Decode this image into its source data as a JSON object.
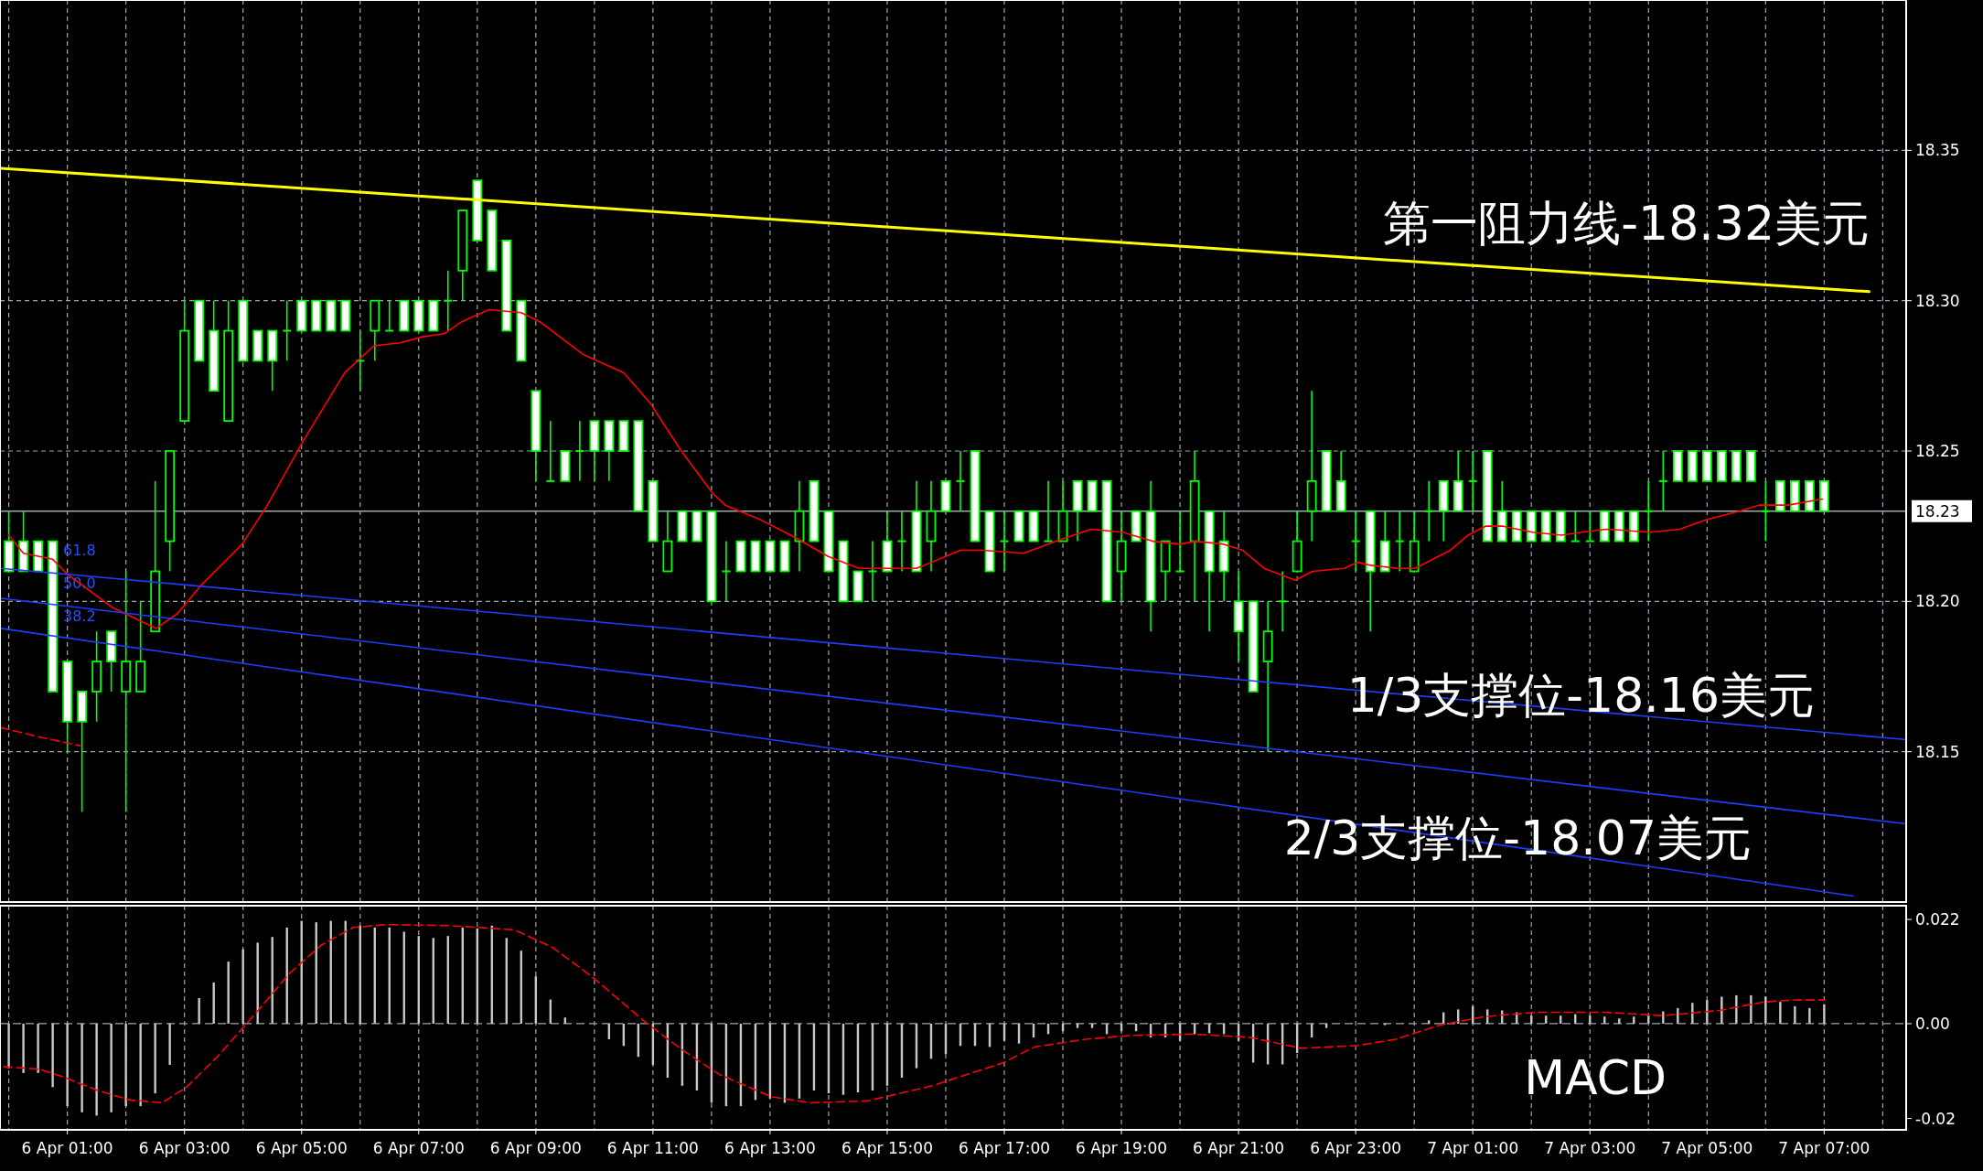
{
  "chart_data": [
    {
      "type": "candlestick",
      "xlim": [
        "--04-05T23:51",
        "--04-07T08:24"
      ],
      "ylim": [
        18.1,
        18.4
      ],
      "yticks": [
        {
          "value": 18.15,
          "label": "18.15"
        },
        {
          "value": 18.2,
          "label": "18.20"
        },
        {
          "value": 18.25,
          "label": "18.25"
        },
        {
          "value": 18.3,
          "label": "18.30"
        },
        {
          "value": 18.35,
          "label": "18.35"
        }
      ],
      "xticks": [
        {
          "value": "--04-06T00:00",
          "label": null
        },
        {
          "value": "--04-06T01:00",
          "label": null
        },
        {
          "value": "--04-06T02:00",
          "label": null
        },
        {
          "value": "--04-06T03:00",
          "label": null
        },
        {
          "value": "--04-06T04:00",
          "label": null
        },
        {
          "value": "--04-06T05:00",
          "label": null
        },
        {
          "value": "--04-06T06:00",
          "label": null
        },
        {
          "value": "--04-06T07:00",
          "label": null
        },
        {
          "value": "--04-06T08:00",
          "label": null
        },
        {
          "value": "--04-06T09:00",
          "label": null
        },
        {
          "value": "--04-06T10:00",
          "label": null
        },
        {
          "value": "--04-06T11:00",
          "label": null
        },
        {
          "value": "--04-06T12:00",
          "label": null
        },
        {
          "value": "--04-06T13:00",
          "label": null
        },
        {
          "value": "--04-06T14:00",
          "label": null
        },
        {
          "value": "--04-06T15:00",
          "label": null
        },
        {
          "value": "--04-06T16:00",
          "label": null
        },
        {
          "value": "--04-06T17:00",
          "label": null
        },
        {
          "value": "--04-06T18:00",
          "label": null
        },
        {
          "value": "--04-06T19:00",
          "label": null
        },
        {
          "value": "--04-06T20:00",
          "label": null
        },
        {
          "value": "--04-06T21:00",
          "label": null
        },
        {
          "value": "--04-06T22:00",
          "label": null
        },
        {
          "value": "--04-06T23:00",
          "label": null
        },
        {
          "value": "--04-07T00:00",
          "label": null
        },
        {
          "value": "--04-07T01:00",
          "label": null
        },
        {
          "value": "--04-07T02:00",
          "label": null
        },
        {
          "value": "--04-07T03:00",
          "label": null
        },
        {
          "value": "--04-07T04:00",
          "label": null
        },
        {
          "value": "--04-07T05:00",
          "label": null
        },
        {
          "value": "--04-07T06:00",
          "label": null
        },
        {
          "value": "--04-07T07:00",
          "label": null
        },
        {
          "value": "--04-07T08:00",
          "label": null
        }
      ],
      "tick_labels": "y",
      "grid": true,
      "x": [
        "--04-06T00:00",
        "--04-06T00:15",
        "--04-06T00:30",
        "--04-06T00:45",
        "--04-06T01:00",
        "--04-06T01:15",
        "--04-06T01:30",
        "--04-06T01:45",
        "--04-06T02:00",
        "--04-06T02:15",
        "--04-06T02:30",
        "--04-06T02:45",
        "--04-06T03:00",
        "--04-06T03:15",
        "--04-06T03:30",
        "--04-06T03:45",
        "--04-06T04:00",
        "--04-06T04:15",
        "--04-06T04:30",
        "--04-06T04:45",
        "--04-06T05:00",
        "--04-06T05:15",
        "--04-06T05:30",
        "--04-06T05:45",
        "--04-06T06:00",
        "--04-06T06:15",
        "--04-06T06:30",
        "--04-06T06:45",
        "--04-06T07:00",
        "--04-06T07:15",
        "--04-06T07:30",
        "--04-06T07:45",
        "--04-06T08:00",
        "--04-06T08:15",
        "--04-06T08:30",
        "--04-06T08:45",
        "--04-06T09:00",
        "--04-06T09:15",
        "--04-06T09:30",
        "--04-06T09:45",
        "--04-06T10:00",
        "--04-06T10:15",
        "--04-06T10:30",
        "--04-06T10:45",
        "--04-06T11:00",
        "--04-06T11:15",
        "--04-06T11:30",
        "--04-06T11:45",
        "--04-06T12:00",
        "--04-06T12:15",
        "--04-06T12:30",
        "--04-06T12:45",
        "--04-06T13:00",
        "--04-06T13:15",
        "--04-06T13:30",
        "--04-06T13:45",
        "--04-06T14:00",
        "--04-06T14:15",
        "--04-06T14:30",
        "--04-06T14:45",
        "--04-06T15:00",
        "--04-06T15:15",
        "--04-06T15:30",
        "--04-06T15:45",
        "--04-06T16:00",
        "--04-06T16:15",
        "--04-06T16:30",
        "--04-06T16:45",
        "--04-06T17:00",
        "--04-06T17:15",
        "--04-06T17:30",
        "--04-06T17:45",
        "--04-06T18:00",
        "--04-06T18:15",
        "--04-06T18:30",
        "--04-06T18:45",
        "--04-06T19:00",
        "--04-06T19:15",
        "--04-06T19:30",
        "--04-06T19:45",
        "--04-06T20:00",
        "--04-06T20:15",
        "--04-06T20:30",
        "--04-06T20:45",
        "--04-06T21:00",
        "--04-06T21:15",
        "--04-06T21:30",
        "--04-06T21:45",
        "--04-06T22:00",
        "--04-06T22:15",
        "--04-06T22:30",
        "--04-06T22:45",
        "--04-06T23:00",
        "--04-06T23:15",
        "--04-06T23:30",
        "--04-06T23:45",
        "--04-07T00:00",
        "--04-07T00:15",
        "--04-07T00:30",
        "--04-07T00:45",
        "--04-07T01:00",
        "--04-07T01:15",
        "--04-07T01:30",
        "--04-07T01:45",
        "--04-07T02:00",
        "--04-07T02:15",
        "--04-07T02:30",
        "--04-07T02:45",
        "--04-07T03:00",
        "--04-07T03:15",
        "--04-07T03:30",
        "--04-07T03:45",
        "--04-07T04:00",
        "--04-07T04:15",
        "--04-07T04:30",
        "--04-07T04:45",
        "--04-07T05:00",
        "--04-07T05:15",
        "--04-07T05:30",
        "--04-07T05:45",
        "--04-07T06:00",
        "--04-07T06:15",
        "--04-07T06:30",
        "--04-07T06:45",
        "--04-07T07:00"
      ],
      "series": [
        {
          "color": "#00ff00",
          "ohlc": [
            [
              18.22,
              18.23,
              18.21,
              18.21
            ],
            [
              18.22,
              18.23,
              18.21,
              18.21
            ],
            [
              18.22,
              18.22,
              18.21,
              18.21
            ],
            [
              18.22,
              18.22,
              18.17,
              18.17
            ],
            [
              18.18,
              18.18,
              18.15,
              18.16
            ],
            [
              18.17,
              18.17,
              18.13,
              18.16
            ],
            [
              18.17,
              18.19,
              18.16,
              18.18
            ],
            [
              18.19,
              18.19,
              18.17,
              18.18
            ],
            [
              18.17,
              18.21,
              18.13,
              18.18
            ],
            [
              18.17,
              18.2,
              18.17,
              18.18
            ],
            [
              18.19,
              18.24,
              18.19,
              18.21
            ],
            [
              18.22,
              18.25,
              18.21,
              18.25
            ],
            [
              18.26,
              18.3,
              18.26,
              18.29
            ],
            [
              18.3,
              18.3,
              18.28,
              18.28
            ],
            [
              18.29,
              18.3,
              18.27,
              18.27
            ],
            [
              18.26,
              18.3,
              18.26,
              18.29
            ],
            [
              18.3,
              18.3,
              18.28,
              18.28
            ],
            [
              18.29,
              18.29,
              18.28,
              18.28
            ],
            [
              18.29,
              18.29,
              18.27,
              18.28
            ],
            [
              18.29,
              18.3,
              18.28,
              18.29
            ],
            [
              18.3,
              18.3,
              18.29,
              18.29
            ],
            [
              18.3,
              18.3,
              18.29,
              18.29
            ],
            [
              18.3,
              18.3,
              18.29,
              18.29
            ],
            [
              18.3,
              18.3,
              18.29,
              18.29
            ],
            [
              18.28,
              18.29,
              18.27,
              18.28
            ],
            [
              18.29,
              18.3,
              18.28,
              18.3
            ],
            [
              18.29,
              18.3,
              18.29,
              18.29
            ],
            [
              18.3,
              18.3,
              18.29,
              18.29
            ],
            [
              18.3,
              18.3,
              18.29,
              18.29
            ],
            [
              18.3,
              18.3,
              18.29,
              18.29
            ],
            [
              18.3,
              18.31,
              18.29,
              18.3
            ],
            [
              18.31,
              18.33,
              18.3,
              18.33
            ],
            [
              18.34,
              18.34,
              18.32,
              18.32
            ],
            [
              18.33,
              18.33,
              18.31,
              18.31
            ],
            [
              18.32,
              18.32,
              18.29,
              18.29
            ],
            [
              18.3,
              18.3,
              18.28,
              18.28
            ],
            [
              18.27,
              18.27,
              18.24,
              18.25
            ],
            [
              18.24,
              18.26,
              18.24,
              18.24
            ],
            [
              18.25,
              18.25,
              18.24,
              18.24
            ],
            [
              18.25,
              18.26,
              18.24,
              18.25
            ],
            [
              18.26,
              18.26,
              18.24,
              18.25
            ],
            [
              18.26,
              18.26,
              18.24,
              18.25
            ],
            [
              18.26,
              18.26,
              18.25,
              18.25
            ],
            [
              18.26,
              18.26,
              18.23,
              18.23
            ],
            [
              18.24,
              18.24,
              18.22,
              18.22
            ],
            [
              18.21,
              18.23,
              18.21,
              18.22
            ],
            [
              18.23,
              18.23,
              18.22,
              18.22
            ],
            [
              18.23,
              18.23,
              18.22,
              18.22
            ],
            [
              18.23,
              18.23,
              18.2,
              18.2
            ],
            [
              18.21,
              18.22,
              18.2,
              18.21
            ],
            [
              18.22,
              18.22,
              18.21,
              18.21
            ],
            [
              18.22,
              18.22,
              18.21,
              18.21
            ],
            [
              18.22,
              18.22,
              18.21,
              18.21
            ],
            [
              18.22,
              18.22,
              18.21,
              18.21
            ],
            [
              18.22,
              18.24,
              18.21,
              18.23
            ],
            [
              18.24,
              18.24,
              18.22,
              18.22
            ],
            [
              18.23,
              18.23,
              18.21,
              18.21
            ],
            [
              18.22,
              18.22,
              18.2,
              18.2
            ],
            [
              18.21,
              18.21,
              18.2,
              18.2
            ],
            [
              18.21,
              18.22,
              18.2,
              18.21
            ],
            [
              18.22,
              18.23,
              18.21,
              18.21
            ],
            [
              18.22,
              18.23,
              18.21,
              18.22
            ],
            [
              18.23,
              18.24,
              18.21,
              18.21
            ],
            [
              18.22,
              18.24,
              18.21,
              18.23
            ],
            [
              18.24,
              18.24,
              18.23,
              18.23
            ],
            [
              18.24,
              18.25,
              18.23,
              18.24
            ],
            [
              18.25,
              18.25,
              18.22,
              18.22
            ],
            [
              18.23,
              18.23,
              18.21,
              18.21
            ],
            [
              18.22,
              18.23,
              18.21,
              18.22
            ],
            [
              18.23,
              18.23,
              18.22,
              18.22
            ],
            [
              18.23,
              18.23,
              18.22,
              18.22
            ],
            [
              18.22,
              18.24,
              18.22,
              18.22
            ],
            [
              18.22,
              18.24,
              18.22,
              18.23
            ],
            [
              18.24,
              18.24,
              18.22,
              18.23
            ],
            [
              18.24,
              18.24,
              18.23,
              18.23
            ],
            [
              18.24,
              18.24,
              18.2,
              18.2
            ],
            [
              18.21,
              18.23,
              18.2,
              18.22
            ],
            [
              18.23,
              18.23,
              18.22,
              18.22
            ],
            [
              18.23,
              18.24,
              18.19,
              18.2
            ],
            [
              18.21,
              18.22,
              18.2,
              18.22
            ],
            [
              18.21,
              18.23,
              18.21,
              18.21
            ],
            [
              18.22,
              18.25,
              18.2,
              18.24
            ],
            [
              18.23,
              18.23,
              18.19,
              18.21
            ],
            [
              18.22,
              18.23,
              18.2,
              18.21
            ],
            [
              18.2,
              18.21,
              18.18,
              18.19
            ],
            [
              18.2,
              18.2,
              18.17,
              18.17
            ],
            [
              18.18,
              18.2,
              18.15,
              18.19
            ],
            [
              18.2,
              18.21,
              18.19,
              18.2
            ],
            [
              18.21,
              18.23,
              18.21,
              18.22
            ],
            [
              18.23,
              18.27,
              18.22,
              18.24
            ],
            [
              18.25,
              18.25,
              18.23,
              18.23
            ],
            [
              18.24,
              18.25,
              18.23,
              18.23
            ],
            [
              18.22,
              18.23,
              18.21,
              18.22
            ],
            [
              18.23,
              18.23,
              18.19,
              18.21
            ],
            [
              18.22,
              18.23,
              18.21,
              18.21
            ],
            [
              18.22,
              18.23,
              18.21,
              18.22
            ],
            [
              18.21,
              18.23,
              18.21,
              18.22
            ],
            [
              18.23,
              18.24,
              18.22,
              18.23
            ],
            [
              18.24,
              18.24,
              18.22,
              18.23
            ],
            [
              18.24,
              18.25,
              18.23,
              18.23
            ],
            [
              18.24,
              18.25,
              18.23,
              18.24
            ],
            [
              18.25,
              18.25,
              18.22,
              18.22
            ],
            [
              18.23,
              18.24,
              18.22,
              18.22
            ],
            [
              18.23,
              18.23,
              18.22,
              18.22
            ],
            [
              18.23,
              18.23,
              18.22,
              18.22
            ],
            [
              18.23,
              18.23,
              18.22,
              18.22
            ],
            [
              18.23,
              18.23,
              18.22,
              18.22
            ],
            [
              18.22,
              18.23,
              18.22,
              18.22
            ],
            [
              18.22,
              18.23,
              18.22,
              18.22
            ],
            [
              18.23,
              18.23,
              18.22,
              18.22
            ],
            [
              18.23,
              18.23,
              18.22,
              18.22
            ],
            [
              18.23,
              18.23,
              18.22,
              18.22
            ],
            [
              18.23,
              18.24,
              18.22,
              18.23
            ],
            [
              18.24,
              18.25,
              18.23,
              18.24
            ],
            [
              18.25,
              18.25,
              18.24,
              18.24
            ],
            [
              18.25,
              18.25,
              18.24,
              18.24
            ],
            [
              18.25,
              18.25,
              18.24,
              18.24
            ],
            [
              18.25,
              18.25,
              18.24,
              18.24
            ],
            [
              18.25,
              18.25,
              18.24,
              18.24
            ],
            [
              18.25,
              18.25,
              18.24,
              18.24
            ],
            [
              18.23,
              18.24,
              18.22,
              18.23
            ],
            [
              18.24,
              18.24,
              18.23,
              18.23
            ],
            [
              18.24,
              18.24,
              18.23,
              18.23
            ],
            [
              18.24,
              18.24,
              18.23,
              18.23
            ],
            [
              18.24,
              18.24,
              18.23,
              18.23
            ]
          ]
        },
        {
          "type": "line",
          "color": "#ff0000",
          "x": [
            "--04-06T00:00",
            "--04-06T00:15",
            "--04-06T00:45",
            "--04-06T01:00",
            "--04-06T01:46",
            "--04-06T02:31",
            "--04-06T02:53",
            "--04-06T03:16",
            "--04-06T03:59",
            "--04-06T04:25",
            "--04-06T05:01",
            "--04-06T05:44",
            "--04-06T06:14",
            "--04-06T06:41",
            "--04-06T07:04",
            "--04-06T07:26",
            "--04-06T07:44",
            "--04-06T08:12",
            "--04-06T08:45",
            "--04-06T09:04",
            "--04-06T09:49",
            "--04-06T10:30",
            "--04-06T10:57",
            "--04-06T11:29",
            "--04-06T12:01",
            "--04-06T12:14",
            "--04-06T12:51",
            "--04-06T13:27",
            "--04-06T13:59",
            "--04-06T14:31",
            "--04-06T15:07",
            "--04-06T15:30",
            "--04-06T15:53",
            "--04-06T16:15",
            "--04-06T16:38",
            "--04-06T17:20",
            "--04-06T17:53",
            "--04-06T18:29",
            "--04-06T19:01",
            "--04-06T19:32",
            "--04-06T20:00",
            "--04-06T20:16",
            "--04-06T20:45",
            "--04-06T21:04",
            "--04-06T21:26",
            "--04-06T21:58",
            "--04-06T22:16",
            "--04-06T22:48",
            "--04-06T23:02",
            "--04-06T23:15",
            "--04-06T23:43",
            "--04-07T00:01",
            "--04-07T00:19",
            "--04-07T00:37",
            "--04-07T00:55",
            "--04-07T01:13",
            "--04-07T01:31",
            "--04-07T02:01",
            "--04-07T02:31",
            "--04-07T02:52",
            "--04-07T03:17",
            "--04-07T04:02",
            "--04-07T04:32",
            "--04-07T04:58",
            "--04-07T05:33",
            "--04-07T05:53",
            "--04-07T06:23",
            "--04-07T06:58"
          ],
          "values": [
            18.222,
            18.216,
            18.214,
            18.209,
            18.198,
            18.191,
            18.196,
            18.205,
            18.219,
            18.232,
            18.253,
            18.276,
            18.285,
            18.286,
            18.288,
            18.289,
            18.293,
            18.297,
            18.296,
            18.293,
            18.282,
            18.276,
            18.266,
            18.25,
            18.236,
            18.232,
            18.227,
            18.221,
            18.215,
            18.211,
            18.211,
            18.211,
            18.214,
            18.217,
            18.217,
            18.216,
            18.22,
            18.224,
            18.223,
            18.22,
            18.219,
            18.22,
            18.219,
            18.217,
            18.211,
            18.207,
            18.21,
            18.211,
            18.213,
            18.212,
            18.211,
            18.211,
            18.214,
            18.217,
            18.222,
            18.225,
            18.225,
            18.223,
            18.222,
            18.223,
            18.224,
            18.223,
            18.224,
            18.227,
            18.23,
            18.232,
            18.232,
            18.234
          ]
        },
        {
          "type": "line",
          "color": "#ff0000",
          "line_style": "dashed",
          "x": [
            "--04-05T23:52",
            "--04-06T00:30",
            "--04-06T01:13"
          ],
          "values": [
            18.158,
            18.155,
            18.152
          ]
        },
        {
          "type": "line",
          "color": "#ffff00",
          "x": [
            "--04-05T23:52",
            "--04-07T07:46"
          ],
          "values": [
            18.344,
            18.303
          ]
        },
        {
          "type": "line",
          "color": "#1f3dff",
          "x": [
            "--04-05T23:52",
            "--04-07T08:24"
          ],
          "values": [
            18.211,
            18.154
          ]
        },
        {
          "type": "line",
          "color": "#1f3dff",
          "x": [
            "--04-05T23:52",
            "--04-07T08:24"
          ],
          "values": [
            18.201,
            18.126
          ]
        },
        {
          "type": "line",
          "color": "#1f3dff",
          "x": [
            "--04-05T23:52",
            "--04-07T07:30"
          ],
          "values": [
            18.191,
            18.102
          ]
        }
      ],
      "ref_lines": [
        {
          "axis": "y",
          "value": 18.23,
          "label": "18.23",
          "color": "#a0a8b0"
        }
      ],
      "annotations": [
        "第一阻力线-18.32美元",
        "1/3支撑位-18.16美元",
        "2/3支撑位-18.07美元",
        "61.8",
        "50.0",
        "38.2"
      ]
    },
    {
      "type": "bar",
      "xlim": [
        "--04-05T23:51",
        "--04-07T08:24"
      ],
      "ylim": [
        -0.0224,
        0.0249
      ],
      "yticks": [
        {
          "value": -0.02,
          "label": "-0.02"
        },
        {
          "value": 0,
          "label": "0.00"
        },
        0.022
      ],
      "xticks": [
        {
          "value": "--04-06T00:00",
          "label": null
        },
        {
          "value": "--04-06T01:00",
          "label": "6 Apr 01:00"
        },
        {
          "value": "--04-06T02:00",
          "label": null
        },
        {
          "value": "--04-06T03:00",
          "label": "6 Apr 03:00"
        },
        {
          "value": "--04-06T04:00",
          "label": null
        },
        {
          "value": "--04-06T05:00",
          "label": "6 Apr 05:00"
        },
        {
          "value": "--04-06T06:00",
          "label": null
        },
        {
          "value": "--04-06T07:00",
          "label": "6 Apr 07:00"
        },
        {
          "value": "--04-06T08:00",
          "label": null
        },
        {
          "value": "--04-06T09:00",
          "label": "6 Apr 09:00"
        },
        {
          "value": "--04-06T10:00",
          "label": null
        },
        {
          "value": "--04-06T11:00",
          "label": "6 Apr 11:00"
        },
        {
          "value": "--04-06T12:00",
          "label": null
        },
        {
          "value": "--04-06T13:00",
          "label": "6 Apr 13:00"
        },
        {
          "value": "--04-06T14:00",
          "label": null
        },
        {
          "value": "--04-06T15:00",
          "label": "6 Apr 15:00"
        },
        {
          "value": "--04-06T16:00",
          "label": null
        },
        {
          "value": "--04-06T17:00",
          "label": "6 Apr 17:00"
        },
        {
          "value": "--04-06T18:00",
          "label": null
        },
        {
          "value": "--04-06T19:00",
          "label": "6 Apr 19:00"
        },
        {
          "value": "--04-06T20:00",
          "label": null
        },
        {
          "value": "--04-06T21:00",
          "label": "6 Apr 21:00"
        },
        {
          "value": "--04-06T22:00",
          "label": null
        },
        {
          "value": "--04-06T23:00",
          "label": "6 Apr 23:00"
        },
        {
          "value": "--04-07T00:00",
          "label": null
        },
        {
          "value": "--04-07T01:00",
          "label": "7 Apr 01:00"
        },
        {
          "value": "--04-07T02:00",
          "label": null
        },
        {
          "value": "--04-07T03:00",
          "label": "7 Apr 03:00"
        },
        {
          "value": "--04-07T04:00",
          "label": null
        },
        {
          "value": "--04-07T05:00",
          "label": "7 Apr 05:00"
        },
        {
          "value": "--04-07T06:00",
          "label": null
        },
        {
          "value": "--04-07T07:00",
          "label": "7 Apr 07:00"
        },
        {
          "value": "--04-07T08:00",
          "label": null
        }
      ],
      "grid": "x",
      "x": [
        "--04-06T00:00",
        "--04-06T00:15",
        "--04-06T00:30",
        "--04-06T00:45",
        "--04-06T01:00",
        "--04-06T01:15",
        "--04-06T01:30",
        "--04-06T01:45",
        "--04-06T02:00",
        "--04-06T02:15",
        "--04-06T02:30",
        "--04-06T02:45",
        "--04-06T03:00",
        "--04-06T03:15",
        "--04-06T03:30",
        "--04-06T03:45",
        "--04-06T04:00",
        "--04-06T04:15",
        "--04-06T04:30",
        "--04-06T04:45",
        "--04-06T05:00",
        "--04-06T05:15",
        "--04-06T05:30",
        "--04-06T05:45",
        "--04-06T06:00",
        "--04-06T06:15",
        "--04-06T06:30",
        "--04-06T06:45",
        "--04-06T07:00",
        "--04-06T07:15",
        "--04-06T07:30",
        "--04-06T07:45",
        "--04-06T08:00",
        "--04-06T08:15",
        "--04-06T08:30",
        "--04-06T08:45",
        "--04-06T09:00",
        "--04-06T09:15",
        "--04-06T09:30",
        "--04-06T09:45",
        "--04-06T10:00",
        "--04-06T10:15",
        "--04-06T10:30",
        "--04-06T10:45",
        "--04-06T11:00",
        "--04-06T11:15",
        "--04-06T11:30",
        "--04-06T11:45",
        "--04-06T12:00",
        "--04-06T12:15",
        "--04-06T12:30",
        "--04-06T12:45",
        "--04-06T13:00",
        "--04-06T13:15",
        "--04-06T13:30",
        "--04-06T13:45",
        "--04-06T14:00",
        "--04-06T14:15",
        "--04-06T14:30",
        "--04-06T14:45",
        "--04-06T15:00",
        "--04-06T15:15",
        "--04-06T15:30",
        "--04-06T15:45",
        "--04-06T16:00",
        "--04-06T16:15",
        "--04-06T16:30",
        "--04-06T16:45",
        "--04-06T17:00",
        "--04-06T17:15",
        "--04-06T17:30",
        "--04-06T17:45",
        "--04-06T18:00",
        "--04-06T18:15",
        "--04-06T18:30",
        "--04-06T18:45",
        "--04-06T19:00",
        "--04-06T19:15",
        "--04-06T19:30",
        "--04-06T19:45",
        "--04-06T20:00",
        "--04-06T20:15",
        "--04-06T20:30",
        "--04-06T20:45",
        "--04-06T21:00",
        "--04-06T21:15",
        "--04-06T21:30",
        "--04-06T21:45",
        "--04-06T22:00",
        "--04-06T22:15",
        "--04-06T22:30",
        "--04-06T22:45",
        "--04-06T23:00",
        "--04-06T23:15",
        "--04-06T23:30",
        "--04-06T23:45",
        "--04-07T00:00",
        "--04-07T00:15",
        "--04-07T00:30",
        "--04-07T00:45",
        "--04-07T01:00",
        "--04-07T01:15",
        "--04-07T01:30",
        "--04-07T01:45",
        "--04-07T02:00",
        "--04-07T02:15",
        "--04-07T02:30",
        "--04-07T02:45",
        "--04-07T03:00",
        "--04-07T03:15",
        "--04-07T03:30",
        "--04-07T03:45",
        "--04-07T04:00",
        "--04-07T04:15",
        "--04-07T04:30",
        "--04-07T04:45",
        "--04-07T05:00",
        "--04-07T05:15",
        "--04-07T05:30",
        "--04-07T05:45",
        "--04-07T06:00",
        "--04-07T06:15",
        "--04-07T06:30",
        "--04-07T06:45",
        "--04-07T07:00"
      ],
      "series": [
        {
          "color": "#c8c8c8",
          "values": [
            -0.0094,
            -0.0104,
            -0.0104,
            -0.0134,
            -0.0174,
            -0.0187,
            -0.0194,
            -0.0187,
            -0.0174,
            -0.0174,
            -0.0147,
            -0.0087,
            0,
            0.0054,
            0.0087,
            0.0131,
            0.0157,
            0.0171,
            0.0183,
            0.0203,
            0.0217,
            0.0214,
            0.0217,
            0.0217,
            0.0207,
            0.0203,
            0.0203,
            0.0194,
            0.0185,
            0.0181,
            0.0185,
            0.0203,
            0.0201,
            0.0207,
            0.0181,
            0.0154,
            0.01,
            0.0051,
            0.0013,
            0,
            0,
            -0.0033,
            -0.0047,
            -0.007,
            -0.0087,
            -0.0114,
            -0.0131,
            -0.0141,
            -0.0167,
            -0.0174,
            -0.0174,
            -0.0161,
            -0.0158,
            -0.0167,
            -0.0158,
            -0.0141,
            -0.0147,
            -0.015,
            -0.0145,
            -0.0141,
            -0.0131,
            -0.0114,
            -0.0094,
            -0.0074,
            -0.0064,
            -0.0047,
            -0.0047,
            -0.0049,
            -0.0036,
            -0.0042,
            -0.0029,
            -0.0022,
            -0.0016,
            -0.0009,
            -0.0009,
            -0.0022,
            -0.0016,
            -0.0016,
            -0.0029,
            -0.0029,
            -0.0036,
            -0.0022,
            -0.002,
            -0.0022,
            -0.0036,
            -0.0082,
            -0.0086,
            -0.0086,
            -0.0062,
            -0.0029,
            -0.0009,
            0,
            0,
            0,
            -0.0003,
            0,
            0,
            0.0007,
            0.0024,
            0.003,
            0.0037,
            0.003,
            0.0028,
            0.0024,
            0.0017,
            0.0017,
            0.0017,
            0.002,
            0.0017,
            0.0015,
            0.0011,
            0.0015,
            0.0017,
            0.0026,
            0.0033,
            0.0044,
            0.005,
            0.0057,
            0.006,
            0.006,
            0.0057,
            0.0046,
            0.0037,
            0.0033,
            0.0041
          ]
        },
        {
          "type": "line",
          "color": "#ff0000",
          "line_style": "dashed",
          "x": [
            "--04-05T23:55",
            "--04-06T00:31",
            "--04-06T00:58",
            "--04-06T01:31",
            "--04-06T02:04",
            "--04-06T02:37",
            "--04-06T03:02",
            "--04-06T03:35",
            "--04-06T04:15",
            "--04-06T04:48",
            "--04-06T05:21",
            "--04-06T05:53",
            "--04-06T06:26",
            "--04-06T07:32",
            "--04-06T08:38",
            "--04-06T09:17",
            "--04-06T09:57",
            "--04-06T10:50",
            "--04-06T11:29",
            "--04-06T12:08",
            "--04-06T13:01",
            "--04-06T13:41",
            "--04-06T14:40",
            "--04-06T15:46",
            "--04-06T16:58",
            "--04-06T17:31",
            "--04-06T18:23",
            "--04-06T19:08",
            "--04-06T20:13",
            "--04-06T21:12",
            "--04-06T22:04",
            "--04-06T23:02",
            "--04-06T23:41",
            "--04-07T00:26",
            "--04-07T01:12",
            "--04-07T02:04",
            "--04-07T03:16",
            "--04-07T04:14",
            "--04-07T05:13",
            "--04-07T05:58",
            "--04-07T06:31",
            "--04-07T07:00"
          ],
          "values": [
            -0.0091,
            -0.0096,
            -0.0114,
            -0.0141,
            -0.0161,
            -0.0167,
            -0.0134,
            -0.0067,
            0.0027,
            0.0107,
            0.0167,
            0.0203,
            0.0209,
            0.0207,
            0.0198,
            0.0161,
            0.01,
            0.0007,
            -0.0054,
            -0.0107,
            -0.0154,
            -0.0167,
            -0.0163,
            -0.0131,
            -0.0083,
            -0.0049,
            -0.0033,
            -0.0025,
            -0.0022,
            -0.0029,
            -0.0052,
            -0.0046,
            -0.0033,
            -0.0003,
            0.0015,
            0.0024,
            0.0024,
            0.0017,
            0.0028,
            0.0046,
            0.005,
            0.005
          ]
        }
      ],
      "ref_lines": [
        {
          "axis": "y",
          "value": 0,
          "color": "#a0a8b0",
          "line_style": "dashed"
        }
      ],
      "annotations": [
        "MACD"
      ]
    }
  ]
}
